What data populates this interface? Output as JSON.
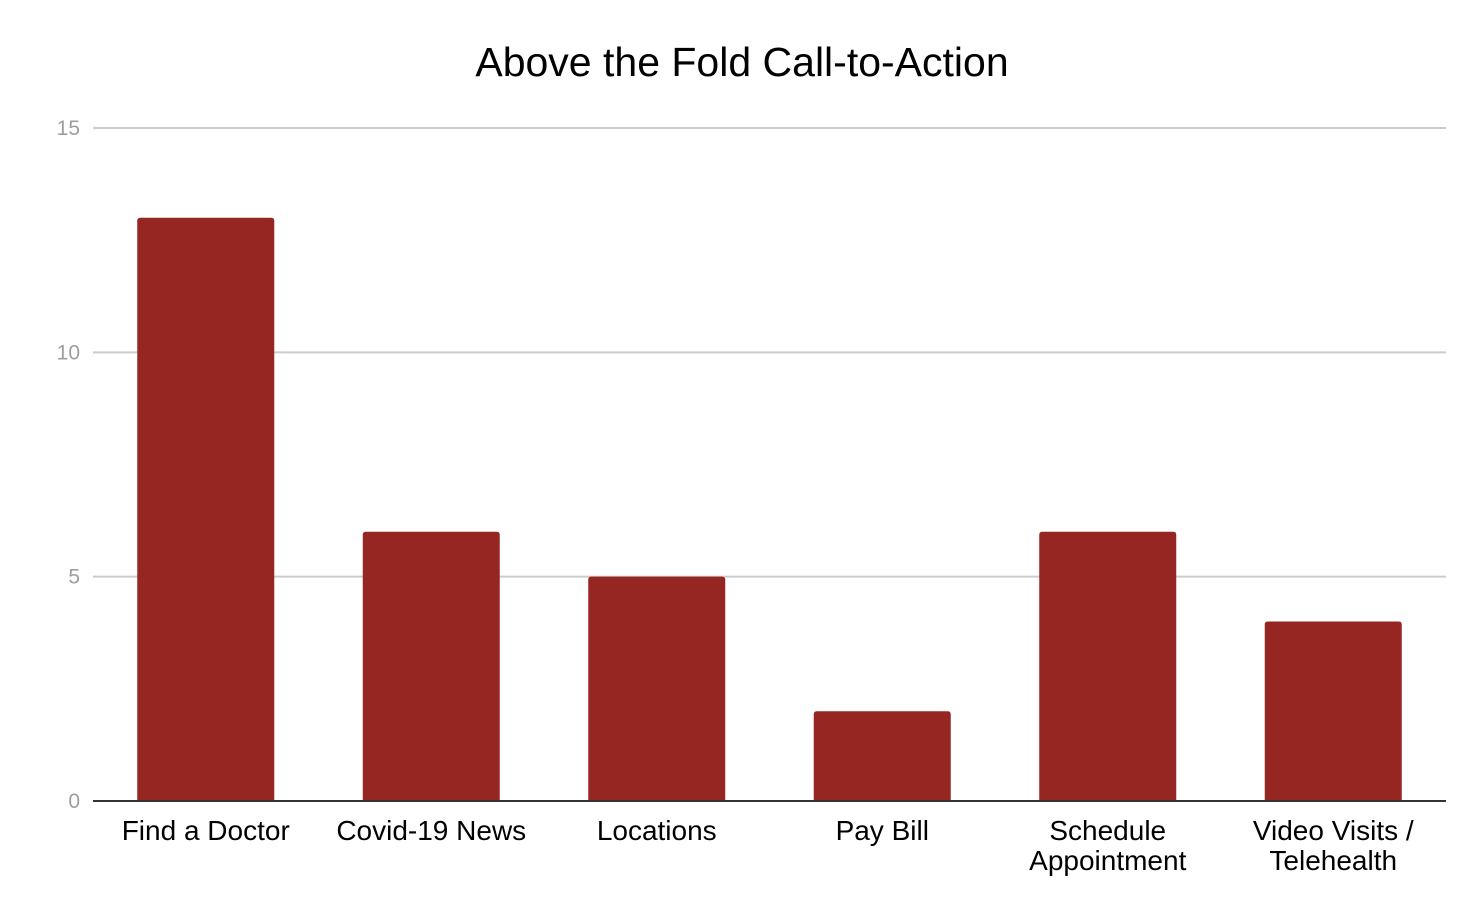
{
  "chart_data": {
    "type": "bar",
    "title": "Above the Fold Call-to-Action",
    "xlabel": "",
    "ylabel": "",
    "categories": [
      [
        "Find a Doctor"
      ],
      [
        "Covid-19 News"
      ],
      [
        "Locations"
      ],
      [
        "Pay Bill"
      ],
      [
        "Schedule",
        "Appointment"
      ],
      [
        "Video Visits /",
        "Telehealth"
      ]
    ],
    "values": [
      13,
      6,
      5,
      2,
      6,
      4
    ],
    "ylim": [
      0,
      15
    ],
    "yticks": [
      "0",
      "5",
      "10",
      "15"
    ],
    "grid": true,
    "legend": "none",
    "bar_color": "#962622"
  }
}
